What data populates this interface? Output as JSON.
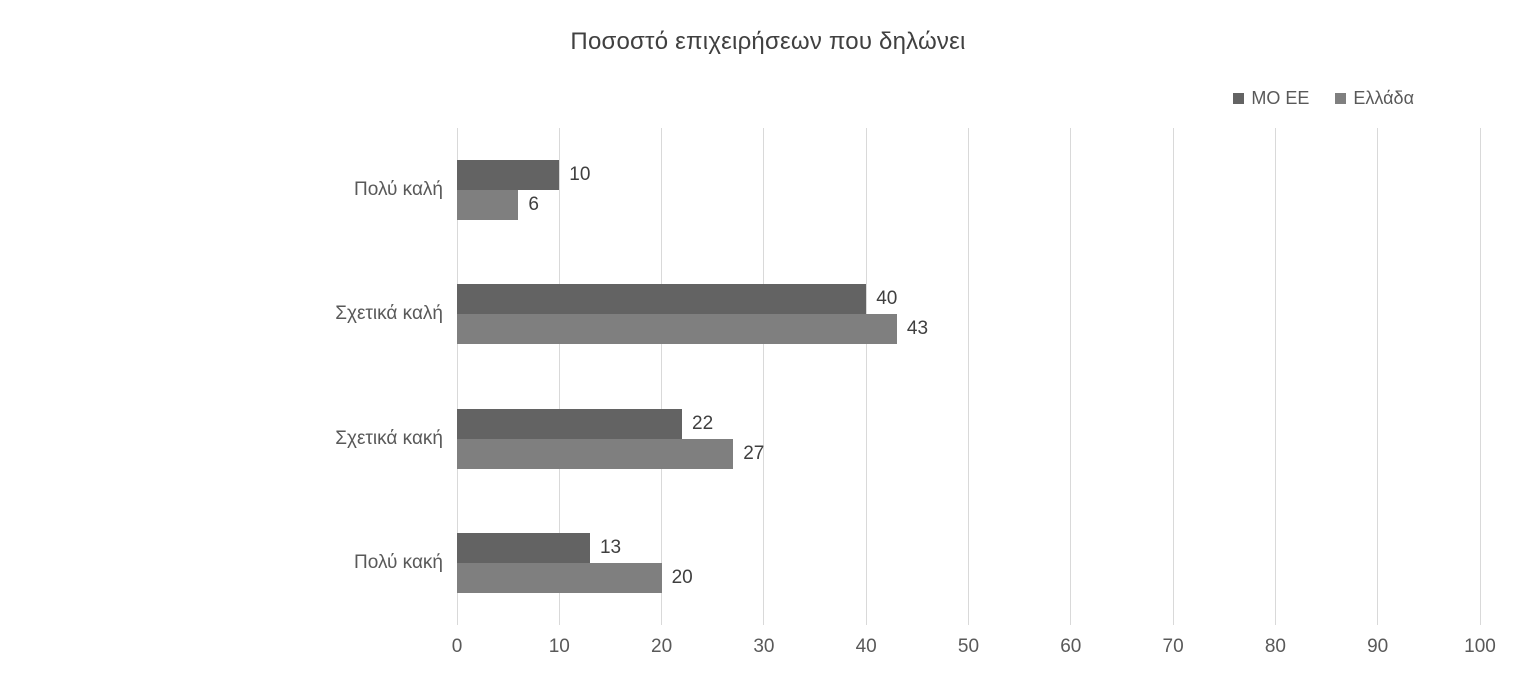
{
  "chart_data": {
    "type": "bar",
    "orientation": "horizontal",
    "title": "Ποσοστό επιχειρήσεων που δηλώνει",
    "categories": [
      "Πολύ καλή",
      "Σχετικά καλή",
      "Σχετικά κακή",
      "Πολύ κακή"
    ],
    "series": [
      {
        "name": "ΜΟ ΕΕ",
        "color": "#636363",
        "values": [
          10,
          40,
          22,
          13
        ]
      },
      {
        "name": "Ελλάδα",
        "color": "#7f7f7f",
        "values": [
          6,
          43,
          27,
          20
        ]
      }
    ],
    "xlim": [
      0,
      100
    ],
    "x_ticks": [
      0,
      10,
      20,
      30,
      40,
      50,
      60,
      70,
      80,
      90,
      100
    ],
    "xlabel": "",
    "ylabel": "",
    "grid": "vertical",
    "gridline_color": "#d9d9d9",
    "legend_position": "top-right",
    "data_labels": true
  }
}
